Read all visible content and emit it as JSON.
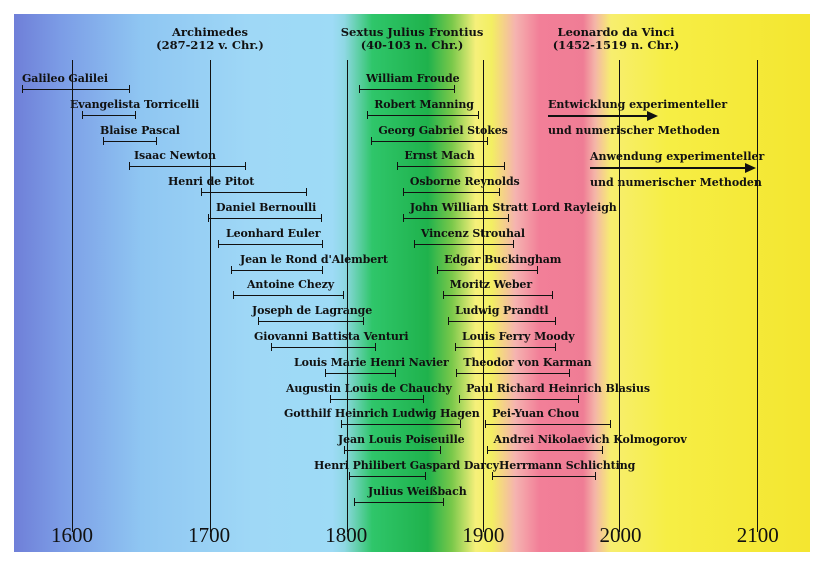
{
  "headers": [
    {
      "name": "Archimedes",
      "years": "(287-212 v. Chr.)"
    },
    {
      "name": "Sextus Julius Frontius",
      "years": "(40-103 n. Chr.)"
    },
    {
      "name": "Leonardo da Vinci",
      "years": "(1452-1519 n. Chr.)"
    }
  ],
  "axis_labels": [
    "1600",
    "1700",
    "1800",
    "1900",
    "2000",
    "2100"
  ],
  "scientists": [
    {
      "name": "Galileo Galilei",
      "start": 1564,
      "end": 1642
    },
    {
      "name": "Evangelista Torricelli",
      "start": 1608,
      "end": 1647
    },
    {
      "name": "Blaise Pascal",
      "start": 1623,
      "end": 1662
    },
    {
      "name": "Isaac Newton",
      "start": 1642,
      "end": 1727
    },
    {
      "name": "Henri de Pitot",
      "start": 1695,
      "end": 1771
    },
    {
      "name": "Daniel Bernoulli",
      "start": 1700,
      "end": 1782
    },
    {
      "name": "Leonhard Euler",
      "start": 1707,
      "end": 1783
    },
    {
      "name": "Jean le Rond d'Alembert",
      "start": 1717,
      "end": 1783
    },
    {
      "name": "Antoine Chezy",
      "start": 1718,
      "end": 1798
    },
    {
      "name": "Joseph de Lagrange",
      "start": 1736,
      "end": 1813
    },
    {
      "name": "Giovanni Battista Venturi",
      "start": 1746,
      "end": 1822
    },
    {
      "name": "Louis Marie Henri Navier",
      "start": 1785,
      "end": 1836
    },
    {
      "name": "Augustin Louis de Chauchy",
      "start": 1789,
      "end": 1857
    },
    {
      "name": "Gotthilf Heinrich Ludwig Hagen",
      "start": 1797,
      "end": 1884
    },
    {
      "name": "Jean Louis Poiseuille",
      "start": 1799,
      "end": 1869
    },
    {
      "name": "Henri Philibert Gaspard Darcy",
      "start": 1803,
      "end": 1858
    },
    {
      "name": "Julius Weißbach",
      "start": 1806,
      "end": 1871
    },
    {
      "name": "William Froude",
      "start": 1810,
      "end": 1879
    },
    {
      "name": "Robert Manning",
      "start": 1816,
      "end": 1897
    },
    {
      "name": "Georg Gabriel Stokes",
      "start": 1819,
      "end": 1903
    },
    {
      "name": "Ernst Mach",
      "start": 1838,
      "end": 1916
    },
    {
      "name": "Osborne Reynolds",
      "start": 1842,
      "end": 1912
    },
    {
      "name": "John William Stratt Lord Rayleigh",
      "start": 1842,
      "end": 1919
    },
    {
      "name": "Vincenz Strouhal",
      "start": 1850,
      "end": 1922
    },
    {
      "name": "Edgar Buckingham",
      "start": 1867,
      "end": 1940
    },
    {
      "name": "Moritz Weber",
      "start": 1871,
      "end": 1951
    },
    {
      "name": "Ludwig Prandtl",
      "start": 1875,
      "end": 1953
    },
    {
      "name": "Louis Ferry Moody",
      "start": 1880,
      "end": 1953
    },
    {
      "name": "Theodor von Karman",
      "start": 1881,
      "end": 1963
    },
    {
      "name": "Paul Richard Heinrich Blasius",
      "start": 1883,
      "end": 1970
    },
    {
      "name": "Pei-Yuan Chou",
      "start": 1902,
      "end": 1993
    },
    {
      "name": "Andrei Nikolaevich Kolmogorov",
      "start": 1903,
      "end": 1987
    },
    {
      "name": "Herrmann Schlichting",
      "start": 1907,
      "end": 1982
    }
  ],
  "arrows": [
    {
      "line1": "Entwicklung experimenteller",
      "line2": "und numerischer Methoden"
    },
    {
      "line1": "Anwendung experimenteller",
      "line2": "und numerischer Methoden"
    }
  ]
}
